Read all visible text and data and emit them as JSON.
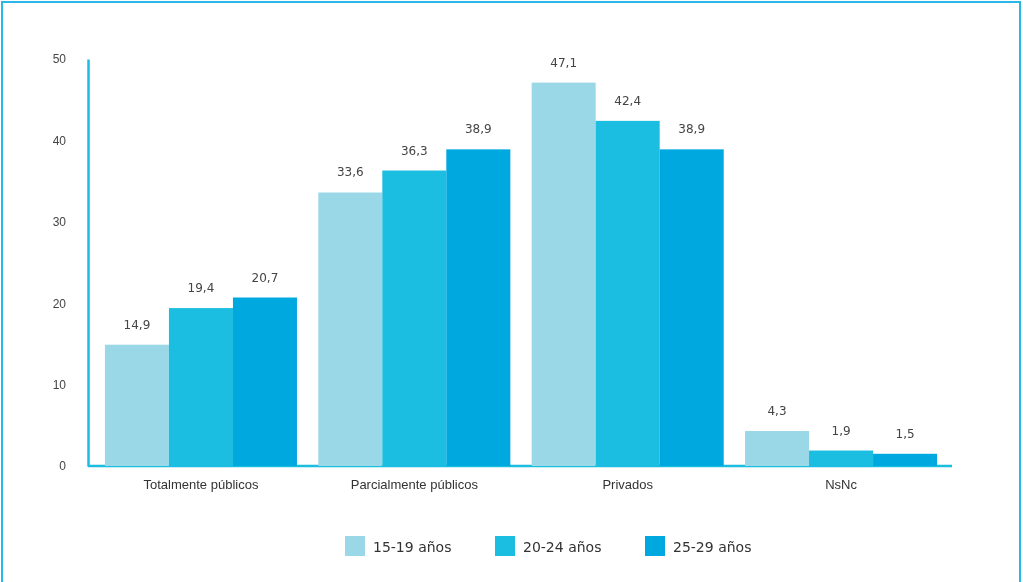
{
  "chart_data": {
    "type": "bar",
    "categories": [
      "Totalmente públicos",
      "Parcialmente públicos",
      "Privados",
      "NsNc"
    ],
    "series": [
      {
        "name": "15-19 años",
        "color": "#9ad8e8",
        "values": [
          14.9,
          33.6,
          47.1,
          4.3
        ],
        "value_labels": [
          "14,9",
          "33,6",
          "47,1",
          "4,3"
        ]
      },
      {
        "name": "20-24 años",
        "color": "#1bbde0",
        "values": [
          19.4,
          36.3,
          42.4,
          1.9
        ],
        "value_labels": [
          "19,4",
          "36,3",
          "42,4",
          "1,9"
        ]
      },
      {
        "name": "25-29 años",
        "color": "#00a8e0",
        "values": [
          20.7,
          38.9,
          38.9,
          1.5
        ],
        "value_labels": [
          "20,7",
          "38,9",
          "38,9",
          "1,5"
        ]
      }
    ],
    "ylim": [
      0,
      50
    ],
    "yticks": [
      0,
      10,
      20,
      30,
      40,
      50
    ],
    "legend": "bottom",
    "grid": false
  }
}
